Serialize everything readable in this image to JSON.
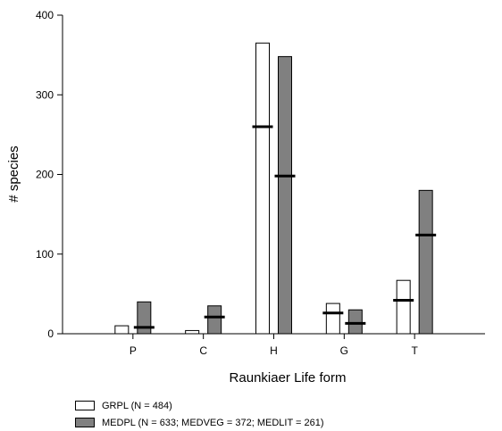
{
  "chart_data": {
    "type": "bar",
    "xlabel": "Raunkiaer Life form",
    "ylabel": "# species",
    "categories": [
      "P",
      "C",
      "H",
      "G",
      "T"
    ],
    "ylim": [
      0,
      400
    ],
    "yticks": [
      0,
      100,
      200,
      300,
      400
    ],
    "series": [
      {
        "name": "GRPL (N = 484)",
        "color": "#ffffff",
        "values": [
          10,
          4,
          365,
          38,
          67
        ],
        "marker_values": [
          null,
          null,
          260,
          26,
          42
        ]
      },
      {
        "name": "MEDPL (N = 633; MEDVEG = 372; MEDLIT = 261)",
        "color": "#808080",
        "values": [
          40,
          35,
          348,
          30,
          180
        ],
        "marker_values": [
          8,
          21,
          198,
          13,
          124
        ]
      }
    ],
    "legend_position": "bottom-left",
    "grid": false
  }
}
